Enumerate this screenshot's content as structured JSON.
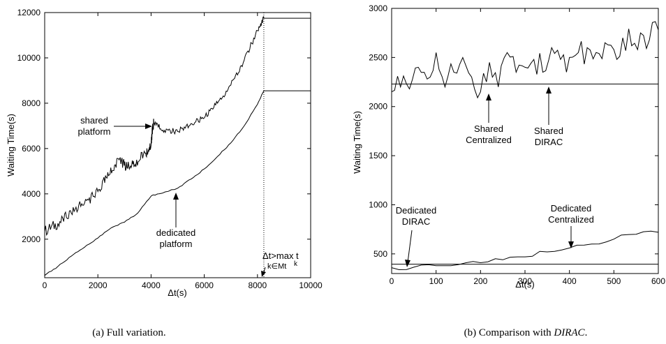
{
  "chart_data": [
    {
      "type": "line",
      "xlabel": "Δt(s)",
      "ylabel": "Waiting Time(s)",
      "xlim": [
        0,
        10000
      ],
      "ylim": [
        300,
        12000
      ],
      "xticks": [
        "0",
        "2000",
        "4000",
        "6000",
        "8000",
        "10000"
      ],
      "yticks": [
        "2000",
        "4000",
        "6000",
        "8000",
        "10000",
        "12000"
      ],
      "caption": "(a) Full variation.",
      "series": [
        {
          "name": "shared platform",
          "x": [
            0,
            500,
            1000,
            1500,
            2000,
            2400,
            2800,
            3100,
            3400,
            3800,
            4000,
            4050,
            4100,
            4500,
            5000,
            5500,
            6000,
            6500,
            7000,
            7500,
            8000,
            8240,
            10000
          ],
          "y": [
            2350,
            2700,
            3150,
            3600,
            4100,
            4800,
            5500,
            5150,
            5300,
            5800,
            6150,
            6800,
            7150,
            6800,
            6750,
            7100,
            7350,
            8000,
            8800,
            9900,
            11200,
            11750,
            11750
          ]
        },
        {
          "name": "dedicated platform",
          "x": [
            0,
            500,
            1000,
            1500,
            2000,
            2500,
            3000,
            3500,
            4000,
            4300,
            5000,
            5500,
            6000,
            6500,
            7000,
            7500,
            8000,
            8240,
            10000
          ],
          "y": [
            400,
            800,
            1250,
            1650,
            2050,
            2500,
            2750,
            3150,
            3900,
            4000,
            4250,
            4650,
            5100,
            5650,
            6250,
            7000,
            7950,
            8550,
            8550
          ]
        }
      ],
      "vline": 8240,
      "annotations": {
        "shared": [
          "shared",
          "platform"
        ],
        "dedicated": [
          "dedicated",
          "platform"
        ],
        "dt_max_1": "Δt>max t",
        "dt_max_sub": "k∈Mt",
        "dt_max_sup": "k"
      }
    },
    {
      "type": "line",
      "xlabel": "Δt(s)",
      "ylabel": "Waiting Time(s)",
      "xlim": [
        0,
        600
      ],
      "ylim": [
        300,
        3000
      ],
      "xticks": [
        "0",
        "100",
        "200",
        "300",
        "400",
        "500",
        "600"
      ],
      "yticks": [
        "500",
        "1000",
        "1500",
        "2000",
        "2500",
        "3000"
      ],
      "caption_prefix": "(b) Comparison with ",
      "caption_italic": "DIRAC",
      "caption_suffix": ".",
      "series": [
        {
          "name": "Shared Centralized",
          "x": [
            0,
            20,
            40,
            60,
            80,
            100,
            120,
            140,
            160,
            180,
            200,
            220,
            240,
            260,
            280,
            300,
            320,
            340,
            360,
            380,
            400,
            420,
            440,
            460,
            480,
            500,
            520,
            540,
            560,
            580,
            600
          ],
          "y": [
            2150,
            2200,
            2180,
            2400,
            2280,
            2550,
            2200,
            2350,
            2500,
            2300,
            2150,
            2450,
            2200,
            2550,
            2350,
            2400,
            2480,
            2350,
            2600,
            2480,
            2500,
            2550,
            2600,
            2550,
            2650,
            2580,
            2700,
            2620,
            2750,
            2680,
            2780
          ]
        },
        {
          "name": "Shared DIRAC",
          "x": [
            0,
            600
          ],
          "y": [
            2230,
            2230
          ]
        },
        {
          "name": "Dedicated Centralized",
          "x": [
            0,
            50,
            100,
            150,
            200,
            250,
            300,
            350,
            400,
            450,
            500,
            550,
            600
          ],
          "y": [
            360,
            365,
            380,
            390,
            410,
            440,
            470,
            520,
            560,
            600,
            650,
            700,
            720
          ]
        },
        {
          "name": "Dedicated DIRAC",
          "x": [
            0,
            600
          ],
          "y": [
            395,
            395
          ]
        }
      ],
      "annotations": {
        "shared_centralized": [
          "Shared",
          "Centralized"
        ],
        "shared_dirac": [
          "Shared",
          "DIRAC"
        ],
        "dedicated_dirac": [
          "Dedicated",
          "DIRAC"
        ],
        "dedicated_centralized": [
          "Dedicated",
          "Centralized"
        ]
      }
    }
  ]
}
